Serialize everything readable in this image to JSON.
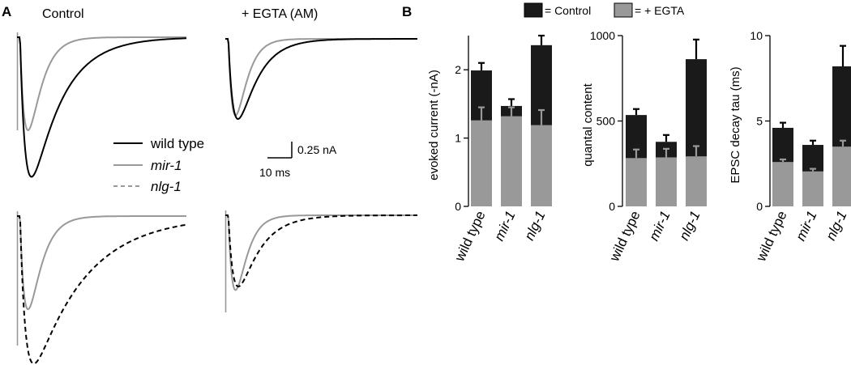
{
  "panel_a": {
    "label": "A",
    "control_title": "Control",
    "egta_title": "+ EGTA (AM)",
    "legend": [
      {
        "key": "wild_type",
        "label": "wild type",
        "italic": false,
        "color": "#000000",
        "dash": "solid"
      },
      {
        "key": "mir1",
        "label": "mir-1",
        "italic": true,
        "color": "#999999",
        "dash": "solid"
      },
      {
        "key": "nlg1",
        "label": "nlg-1",
        "italic": true,
        "color": "#999999",
        "dash": "dashed"
      }
    ],
    "scale_current": "0.25 nA",
    "scale_time": "10 ms",
    "traces": [
      {
        "name": "control-top",
        "series": [
          {
            "color": "#999999",
            "dash": "solid",
            "peak": -0.5,
            "tau": 2.0
          },
          {
            "color": "#000000",
            "dash": "solid",
            "peak": -0.75,
            "tau": 5.0
          }
        ]
      },
      {
        "name": "egta-top",
        "series": [
          {
            "color": "#999999",
            "dash": "solid",
            "peak": -0.42,
            "tau": 1.6
          },
          {
            "color": "#000000",
            "dash": "solid",
            "peak": -0.44,
            "tau": 3.2
          }
        ]
      },
      {
        "name": "control-bottom",
        "series": [
          {
            "color": "#999999",
            "dash": "solid",
            "peak": -0.48,
            "tau": 2.0
          },
          {
            "color": "#000000",
            "dash": "dashed",
            "peak": -0.76,
            "tau": 8.5
          }
        ]
      },
      {
        "name": "egta-bottom",
        "series": [
          {
            "color": "#999999",
            "dash": "solid",
            "peak": -0.42,
            "tau": 1.6
          },
          {
            "color": "#000000",
            "dash": "dashed",
            "peak": -0.4,
            "tau": 3.5
          }
        ]
      }
    ]
  },
  "panel_b": {
    "label": "B",
    "legend": [
      {
        "label": "= Control",
        "color": "#1a1a1a"
      },
      {
        "label": "= + EGTA",
        "color": "#999999"
      }
    ]
  },
  "colors": {
    "control": "#1a1a1a",
    "egta": "#999999",
    "wild_type": "#000000",
    "mutant": "#999999"
  },
  "chart_data": [
    {
      "type": "bar",
      "ylabel": "evoked current (-nA)",
      "ylim": [
        0,
        2.5
      ],
      "yticks": [
        0,
        1,
        2
      ],
      "categories": [
        {
          "label": "wild type",
          "italic": false
        },
        {
          "label": "mir-1",
          "italic": true
        },
        {
          "label": "nlg-1",
          "italic": true
        }
      ],
      "series": [
        {
          "name": "Control",
          "values": [
            1.99,
            1.47,
            2.36
          ],
          "errors": [
            0.11,
            0.1,
            0.14
          ]
        },
        {
          "name": "+ EGTA",
          "values": [
            1.26,
            1.32,
            1.19
          ],
          "errors": [
            0.19,
            0.13,
            0.22
          ]
        }
      ]
    },
    {
      "type": "bar",
      "ylabel": "quantal content",
      "ylim": [
        0,
        1000
      ],
      "yticks": [
        0,
        500,
        1000
      ],
      "categories": [
        {
          "label": "wild type",
          "italic": false
        },
        {
          "label": "mir-1",
          "italic": true
        },
        {
          "label": "nlg-1",
          "italic": true
        }
      ],
      "series": [
        {
          "name": "Control",
          "values": [
            535,
            378,
            862
          ],
          "errors": [
            35,
            40,
            115
          ]
        },
        {
          "name": "+ EGTA",
          "values": [
            283,
            287,
            293
          ],
          "errors": [
            50,
            50,
            60
          ]
        }
      ]
    },
    {
      "type": "bar",
      "ylabel": "EPSC decay tau (ms)",
      "ylim": [
        0,
        10
      ],
      "yticks": [
        0,
        5,
        10
      ],
      "categories": [
        {
          "label": "wild type",
          "italic": false
        },
        {
          "label": "mir-1",
          "italic": true
        },
        {
          "label": "nlg-1",
          "italic": true
        }
      ],
      "series": [
        {
          "name": "Control",
          "values": [
            4.6,
            3.6,
            8.2
          ],
          "errors": [
            0.3,
            0.25,
            1.2
          ]
        },
        {
          "name": "+ EGTA",
          "values": [
            2.6,
            2.05,
            3.5
          ],
          "errors": [
            0.15,
            0.15,
            0.35
          ]
        }
      ]
    }
  ]
}
